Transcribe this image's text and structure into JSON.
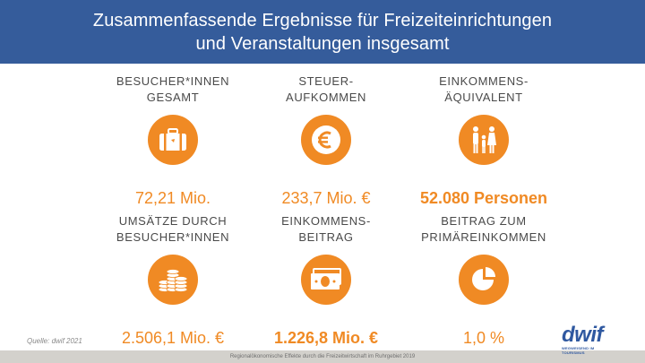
{
  "header": {
    "line1": "Zusammenfassende Ergebnisse für Freizeiteinrichtungen",
    "line2": "und Veranstaltungen insgesamt"
  },
  "colors": {
    "header_bg": "#355c9b",
    "accent": "#f08a24",
    "footer_bg": "#d3d1cc"
  },
  "tiles": [
    {
      "label_1": "BESUCHER*INNEN",
      "label_2": "GESAMT",
      "icon": "suitcase-icon",
      "value": "72,21 Mio."
    },
    {
      "label_1": "STEUER-",
      "label_2": "AUFKOMMEN",
      "icon": "euro-icon",
      "value": "233,7 Mio. €"
    },
    {
      "label_1": "EINKOMMENS-",
      "label_2": "ÄQUIVALENT",
      "icon": "family-icon",
      "value": "52.080 Personen"
    },
    {
      "label_1": "UMSÄTZE DURCH",
      "label_2": "BESUCHER*INNEN",
      "icon": "coins-icon",
      "value": "2.506,1 Mio. €"
    },
    {
      "label_1": "EINKOMMENS-",
      "label_2": "BEITRAG",
      "icon": "banknote-icon",
      "value": "1.226,8 Mio. €"
    },
    {
      "label_1": "BEITRAG ZUM",
      "label_2": "PRIMÄREINKOMMEN",
      "icon": "pie-chart-icon",
      "value": "1,0 %"
    }
  ],
  "source": "Quelle: dwif 2021",
  "footer": "Regionalökonomische Effekte durch die Freizeitwirtschaft im Ruhrgebiet 2019",
  "logo": {
    "word": "dwif",
    "tagline": "WEGWEISEND IM TOURISMUS"
  }
}
